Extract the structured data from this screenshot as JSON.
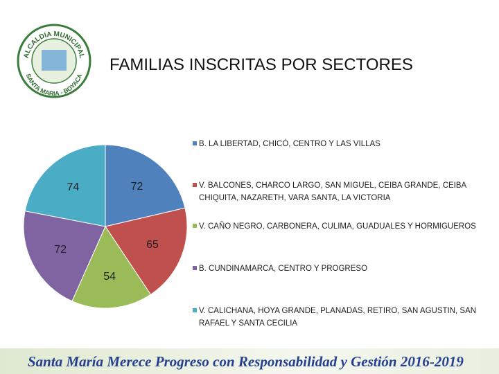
{
  "logo": {
    "top_text": "ALCALDIA MUNICIPAL",
    "bottom_text": "SANTA MARIA - BOYACA"
  },
  "chart_data": {
    "type": "pie",
    "title": "FAMILIAS INSCRITAS POR SECTORES",
    "categories": [
      "B. LA LIBERTAD, CHICÓ, CENTRO Y LAS VILLAS",
      "V. BALCONES, CHARCO LARGO, SAN MIGUEL, CEIBA GRANDE, CEIBA CHIQUITA, NAZARETH, VARA SANTA, LA VICTORIA",
      "V. CAÑO NEGRO, CARBONERA, CULIMA, GUADUALES Y HORMIGUEROS",
      "B. CUNDINAMARCA, CENTRO Y PROGRESO",
      "V. CALICHANA, HOYA GRANDE, PLANADAS, RETIRO, SAN AGUSTIN, SAN RAFAEL Y SANTA CECILIA"
    ],
    "values": [
      72,
      65,
      54,
      72,
      74
    ],
    "colors": [
      "#4f81bd",
      "#c0504d",
      "#9bbb59",
      "#8064a2",
      "#4bacc6"
    ],
    "legend": "right"
  },
  "footer": "Santa María Merece Progreso con Responsabilidad y Gestión 2016-2019"
}
